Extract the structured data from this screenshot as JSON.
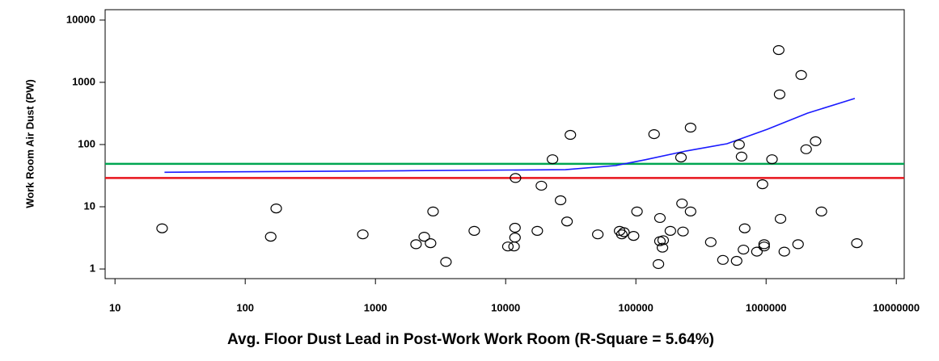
{
  "chart_data": {
    "type": "scatter",
    "xlabel": "Avg. Floor Dust Lead in Post-Work Work Room (R-Square = 5.64%)",
    "ylabel": "Work Room Air Dust (PW)",
    "xscale": "log",
    "yscale": "log",
    "xlim": [
      8.4,
      11500000
    ],
    "ylim": [
      0.7,
      14700
    ],
    "xticks": [
      10,
      100,
      1000,
      10000,
      100000,
      1000000,
      10000000
    ],
    "yticks": [
      1,
      10,
      100,
      1000,
      10000
    ],
    "marker_color": "#000000",
    "points": {
      "x": [
        23,
        157,
        173,
        800,
        2050,
        2370,
        2650,
        2770,
        3480,
        5740,
        10400,
        11600,
        11800,
        11800,
        11900,
        17500,
        18800,
        22900,
        26400,
        29600,
        31400,
        51000,
        75000,
        78000,
        81000,
        96000,
        102000,
        138000,
        149000,
        153000,
        160000,
        162000,
        153000,
        184000,
        222000,
        226000,
        230000,
        263000,
        263000,
        376000,
        466000,
        594000,
        620000,
        648000,
        685000,
        670000,
        850000,
        938000,
        966000,
        966000,
        1110000,
        1250000,
        1270000,
        1290000,
        1380000,
        1760000,
        1860000,
        2030000,
        2400000,
        2660000,
        4980000
      ],
      "y": [
        4.5,
        3.3,
        9.4,
        3.6,
        2.5,
        3.3,
        2.6,
        8.4,
        1.3,
        4.1,
        2.3,
        2.3,
        3.2,
        4.6,
        29,
        4.1,
        21.8,
        58,
        12.7,
        5.8,
        143,
        3.6,
        4.1,
        3.6,
        3.9,
        3.4,
        8.4,
        147,
        1.2,
        2.8,
        2.2,
        2.9,
        6.6,
        4.1,
        62,
        11.3,
        4.0,
        187,
        8.4,
        2.7,
        1.4,
        1.35,
        100,
        64,
        4.5,
        2.05,
        1.9,
        23,
        2.5,
        2.3,
        58,
        3300,
        640,
        6.4,
        1.9,
        2.5,
        1310,
        84,
        113,
        8.4,
        2.6
      ]
    },
    "fit_line": {
      "color": "#1a1aff",
      "x": [
        24,
        1660,
        28800,
        70000,
        118000,
        244000,
        500000,
        1020000,
        2080000,
        4800000
      ],
      "y": [
        35.9,
        38,
        39.5,
        46,
        57,
        79,
        103,
        176,
        320,
        550
      ]
    },
    "reference_lines": [
      {
        "y": 49,
        "color": "#00a651"
      },
      {
        "y": 29,
        "color": "#e8141b"
      }
    ]
  }
}
